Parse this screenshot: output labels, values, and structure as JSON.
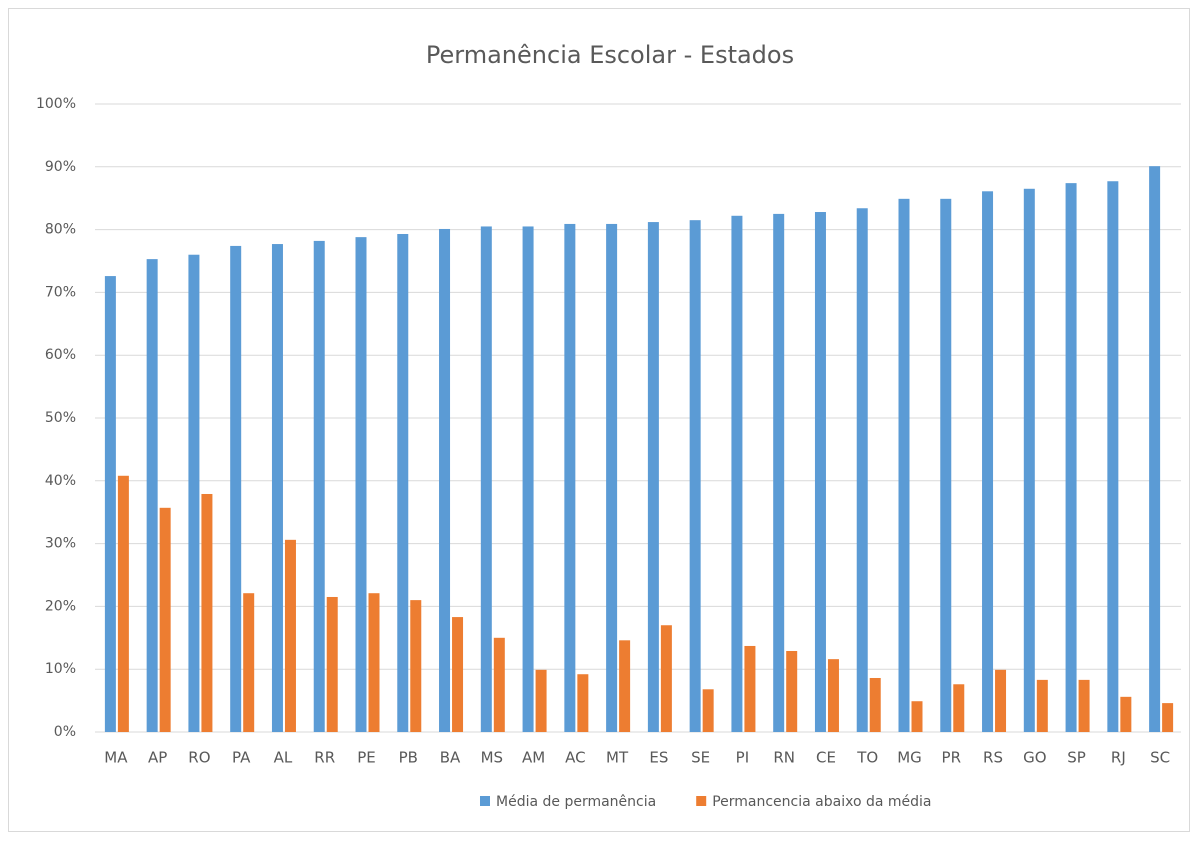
{
  "chart_data": {
    "type": "bar",
    "title": "Permanência Escolar - Estados",
    "categories": [
      "MA",
      "AP",
      "RO",
      "PA",
      "AL",
      "RR",
      "PE",
      "PB",
      "BA",
      "MS",
      "AM",
      "AC",
      "MT",
      "ES",
      "SE",
      "PI",
      "RN",
      "CE",
      "TO",
      "MG",
      "PR",
      "RS",
      "GO",
      "SP",
      "RJ",
      "SC"
    ],
    "series": [
      {
        "name": "Média de permanência",
        "color": "#5b9bd5",
        "values": [
          72.6,
          75.3,
          76.0,
          77.4,
          77.7,
          78.2,
          78.8,
          79.3,
          80.1,
          80.5,
          80.5,
          80.9,
          80.9,
          81.2,
          81.5,
          82.2,
          82.5,
          82.8,
          83.4,
          84.9,
          84.9,
          86.1,
          86.5,
          87.4,
          87.7,
          90.1
        ]
      },
      {
        "name": "Permancencia abaixo da média",
        "color": "#ed7d31",
        "values": [
          40.8,
          35.7,
          37.9,
          22.1,
          30.6,
          21.5,
          22.1,
          21.0,
          18.3,
          15.0,
          9.9,
          9.2,
          14.6,
          17.0,
          6.8,
          13.7,
          12.9,
          11.6,
          8.6,
          4.9,
          7.6,
          9.9,
          8.3,
          8.3,
          5.6,
          4.6
        ]
      }
    ],
    "ylim": [
      0,
      100
    ],
    "yticks": [
      {
        "value": 0,
        "label": "0%"
      },
      {
        "value": 10,
        "label": "10%"
      },
      {
        "value": 20,
        "label": "20%"
      },
      {
        "value": 30,
        "label": "30%"
      },
      {
        "value": 40,
        "label": "40%"
      },
      {
        "value": 50,
        "label": "50%"
      },
      {
        "value": 60,
        "label": "60%"
      },
      {
        "value": 70,
        "label": "70%"
      },
      {
        "value": 80,
        "label": "80%"
      },
      {
        "value": 90,
        "label": "90%"
      },
      {
        "value": 100,
        "label": "100%"
      }
    ],
    "grid": true,
    "legend": "bottom"
  }
}
